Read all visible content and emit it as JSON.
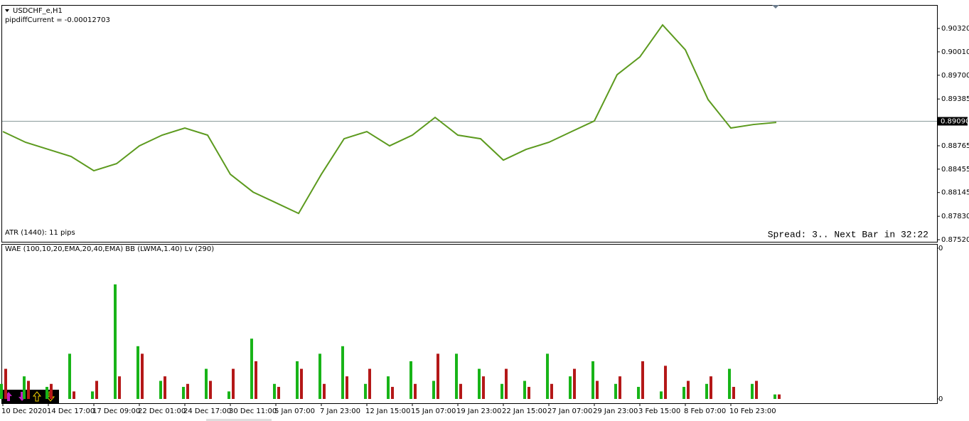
{
  "header": {
    "symbol": "USDCHF_e,H1",
    "indicator": "pipdiffCurrent = -0.00012703"
  },
  "atr_label": "ATR (1440): 11 pips",
  "status": "Spread: 3.. Next Bar in 32:22",
  "chart_data": [
    {
      "type": "line",
      "categories": [
        "10 Dec 2020",
        null,
        "14 Dec 17:00",
        null,
        "17 Dec 09:00",
        null,
        "22 Dec 01:00",
        null,
        "24 Dec 17:00",
        null,
        "30 Dec 11:00",
        null,
        "5 Jan 07:00",
        null,
        "7 Jan 23:00",
        null,
        "12 Jan 15:00",
        null,
        "15 Jan 07:00",
        null,
        "19 Jan 23:00",
        null,
        "22 Jan 15:00",
        null,
        "27 Jan 07:00",
        null,
        "29 Jan 23:00",
        null,
        "3 Feb 15:00",
        null,
        "8 Feb 07:00",
        null,
        "10 Feb 23:00",
        null,
        null
      ],
      "series": [
        {
          "color": "#5c9a1e",
          "values": [
            0.88953,
            0.88811,
            0.88717,
            0.88623,
            0.88434,
            0.88528,
            0.88764,
            0.88906,
            0.89,
            0.88906,
            0.88387,
            0.88151,
            0.8801,
            0.87868,
            0.88387,
            0.88858,
            0.88953,
            0.88764,
            0.88906,
            0.89141,
            0.88906,
            0.88858,
            0.88575,
            0.88717,
            0.88811,
            0.88953,
            0.89094,
            0.89707,
            0.89943,
            0.90367,
            0.90037,
            0.89377,
            0.89,
            0.89047,
            0.89075
          ]
        }
      ],
      "ylim": [
        0.87492,
        0.90622
      ],
      "yticks": [
        {
          "value": 0.9032,
          "label": "0.90320"
        },
        {
          "value": 0.9001,
          "label": "0.90010"
        },
        {
          "value": 0.897,
          "label": "0.89700"
        },
        0.89385,
        {
          "value": 0.88765,
          "label": "0.88765"
        },
        0.88455,
        0.88145,
        {
          "value": 0.8783,
          "label": "0.87830"
        },
        {
          "value": 0.8752,
          "label": "0.87520"
        }
      ],
      "current": {
        "value": 0.8909,
        "label": "0.89090"
      }
    },
    {
      "type": "bar",
      "title": "WAE (100,10,20,EMA,20,40,EMA)  BB (LWMA,1.40) Lv (290)",
      "series": [
        {
          "color": "#18b418",
          "values": [
            10,
            15,
            8,
            30,
            5,
            76,
            35,
            12,
            8,
            20,
            5,
            40,
            10,
            25,
            30,
            35,
            10,
            15,
            25,
            12,
            30,
            20,
            10,
            12,
            30,
            15,
            25,
            10,
            8,
            5,
            8,
            10,
            20,
            10,
            3
          ]
        },
        {
          "color": "#b41818",
          "values": [
            20,
            12,
            10,
            5,
            12,
            15,
            30,
            15,
            10,
            12,
            20,
            25,
            8,
            20,
            10,
            15,
            20,
            8,
            10,
            30,
            10,
            15,
            20,
            8,
            10,
            20,
            12,
            15,
            25,
            22,
            12,
            15,
            8,
            12,
            3
          ]
        }
      ],
      "ylim": [
        0,
        100
      ],
      "yticks": [
        {
          "value": 100,
          "label": "0"
        },
        0
      ]
    }
  ]
}
